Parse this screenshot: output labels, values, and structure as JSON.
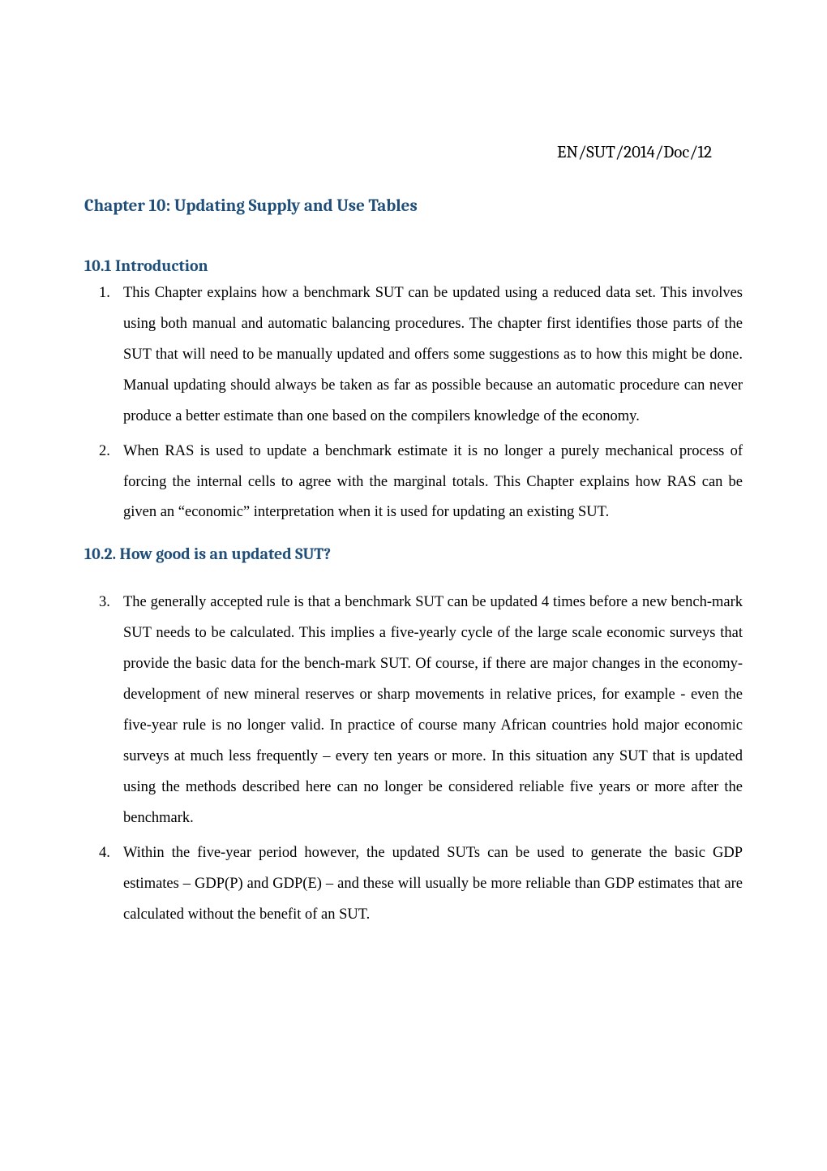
{
  "document": {
    "reference": "EN/SUT/2014/Doc/12",
    "chapter_title": "Chapter 10: Updating Supply and Use Tables"
  },
  "sections": {
    "intro": {
      "heading": "10.1 Introduction",
      "items": [
        "This Chapter explains how a benchmark SUT can be updated using a reduced data set. This involves using both manual and automatic balancing procedures.  The chapter first identifies those parts of the SUT that will need to be manually updated and offers some suggestions as to how this might be done. Manual updating should always be taken as far as possible because an automatic procedure can never produce a better estimate than one based on the compilers knowledge of the economy.",
        "When RAS is used to update a benchmark estimate it is no longer a purely mechanical process of forcing the internal cells to agree with the marginal totals. This Chapter explains how RAS can be given an “economic” interpretation when it is used for updating an existing SUT."
      ]
    },
    "quality": {
      "heading": "10.2. How good is an updated SUT?",
      "items": [
        "The generally accepted rule is that a benchmark SUT can be updated 4 times before a new bench-mark SUT needs to be calculated.  This implies a five-yearly cycle of the large scale economic surveys that provide the basic data for the bench-mark SUT.  Of course, if there are major changes in the economy- development of new mineral reserves or sharp movements in relative prices, for example - even the five-year rule is no longer valid. In practice of course many African countries hold major economic surveys at much less frequently – every ten years or more.  In this situation any SUT that is updated using the methods described here can no longer be considered reliable five years or more after the benchmark.",
        "Within the five-year period however, the updated SUTs can be used to generate the basic GDP estimates – GDP(P) and GDP(E) – and these will usually be more reliable than GDP estimates that are calculated without the benefit of an SUT."
      ]
    }
  },
  "styling": {
    "heading_color": "#1f4e79",
    "body_text_color": "#000000",
    "background_color": "#ffffff",
    "heading_fontsize": 21,
    "body_fontsize": 18.5,
    "line_height": 2.05
  }
}
